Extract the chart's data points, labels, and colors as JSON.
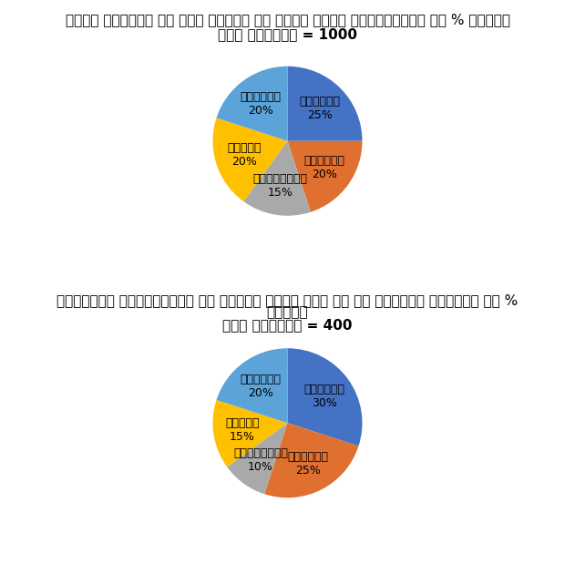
{
  "chart1": {
    "title_line1": "टिकट बुकिंग के लिए उपयोग की जाने वाली वेबसाइटों का % वितरण",
    "title_line2": "कुल बुकिंग = 1000",
    "labels": [
      "एमएमटी",
      "यात्रा",
      "गोआईबिबो",
      "ईएमटी",
      "पेटीएम"
    ],
    "sizes": [
      25,
      20,
      15,
      20,
      20
    ],
    "colors": [
      "#4472C4",
      "#E07030",
      "#A9A9A9",
      "#FFC000",
      "#5BA3D9"
    ],
    "startangle": 90
  },
  "chart2": {
    "title_line1": "विभिन्न वेबसाइटों का उपयोग करके बुक की गई इंडिगो फ्लाइट का %",
    "title_line2": "वितरण",
    "title_line3": "कुल बुकिंग = 400",
    "labels": [
      "एमएमटी",
      "यात्रा",
      "गोआईबिबो",
      "ईएमटी",
      "पेटीएम"
    ],
    "sizes": [
      30,
      25,
      10,
      15,
      20
    ],
    "colors": [
      "#4472C4",
      "#E07030",
      "#A9A9A9",
      "#FFC000",
      "#5BA3D9"
    ],
    "startangle": 90
  },
  "background_color": "#FFFFFF",
  "border_color": "#000000",
  "label_fontsize": 9,
  "title_fontsize": 11
}
